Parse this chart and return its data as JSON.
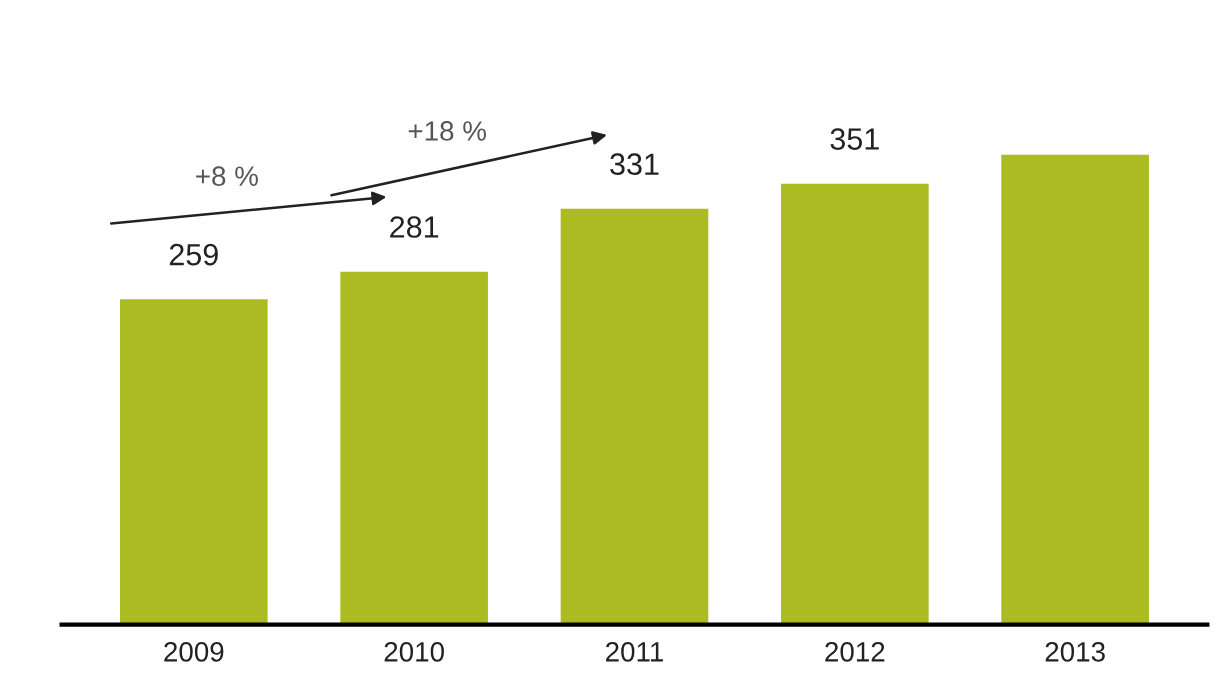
{
  "chart_data": {
    "type": "bar",
    "categories": [
      "2009",
      "2010",
      "2011",
      "2012",
      "2013"
    ],
    "values": [
      259,
      281,
      331,
      351,
      374
    ],
    "value_labels": [
      "259",
      "281",
      "331",
      "351",
      null
    ],
    "color": "#acbb22",
    "annotations": [
      "+8 %",
      "+18 %"
    ],
    "grid": false
  }
}
